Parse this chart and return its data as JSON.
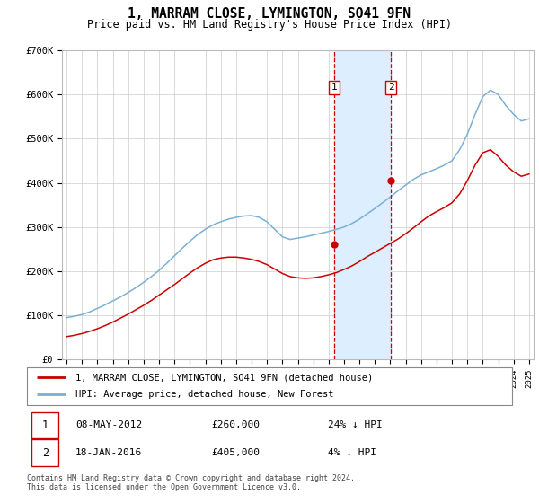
{
  "title": "1, MARRAM CLOSE, LYMINGTON, SO41 9FN",
  "subtitle": "Price paid vs. HM Land Registry's House Price Index (HPI)",
  "ylim": [
    0,
    700000
  ],
  "yticks": [
    0,
    100000,
    200000,
    300000,
    400000,
    500000,
    600000,
    700000
  ],
  "ytick_labels": [
    "£0",
    "£100K",
    "£200K",
    "£300K",
    "£400K",
    "£500K",
    "£600K",
    "£700K"
  ],
  "transaction1_date": 2012.36,
  "transaction1_price": 260000,
  "transaction1_label": "1",
  "transaction1_info": "08-MAY-2012",
  "transaction1_price_str": "£260,000",
  "transaction1_hpi_str": "24% ↓ HPI",
  "transaction2_date": 2016.05,
  "transaction2_price": 405000,
  "transaction2_label": "2",
  "transaction2_info": "18-JAN-2016",
  "transaction2_price_str": "£405,000",
  "transaction2_hpi_str": "4% ↓ HPI",
  "line1_color": "#cc0000",
  "line2_color": "#7ab0d4",
  "shade_color": "#ddeeff",
  "vline_color": "#cc0000",
  "legend1_label": "1, MARRAM CLOSE, LYMINGTON, SO41 9FN (detached house)",
  "legend2_label": "HPI: Average price, detached house, New Forest",
  "footer": "Contains HM Land Registry data © Crown copyright and database right 2024.\nThis data is licensed under the Open Government Licence v3.0.",
  "hpi_x": [
    1995.0,
    1995.5,
    1996.0,
    1996.5,
    1997.0,
    1997.5,
    1998.0,
    1998.5,
    1999.0,
    1999.5,
    2000.0,
    2000.5,
    2001.0,
    2001.5,
    2002.0,
    2002.5,
    2003.0,
    2003.5,
    2004.0,
    2004.5,
    2005.0,
    2005.5,
    2006.0,
    2006.5,
    2007.0,
    2007.5,
    2008.0,
    2008.5,
    2009.0,
    2009.5,
    2010.0,
    2010.5,
    2011.0,
    2011.5,
    2012.0,
    2012.5,
    2013.0,
    2013.5,
    2014.0,
    2014.5,
    2015.0,
    2015.5,
    2016.0,
    2016.5,
    2017.0,
    2017.5,
    2018.0,
    2018.5,
    2019.0,
    2019.5,
    2020.0,
    2020.5,
    2021.0,
    2021.5,
    2022.0,
    2022.5,
    2023.0,
    2023.5,
    2024.0,
    2024.5,
    2025.0
  ],
  "hpi_y": [
    95000,
    98000,
    102000,
    108000,
    116000,
    124000,
    133000,
    142000,
    152000,
    163000,
    175000,
    188000,
    202000,
    218000,
    235000,
    252000,
    268000,
    283000,
    295000,
    305000,
    312000,
    318000,
    322000,
    325000,
    326000,
    322000,
    312000,
    295000,
    278000,
    272000,
    275000,
    278000,
    282000,
    286000,
    290000,
    295000,
    300000,
    308000,
    318000,
    330000,
    342000,
    355000,
    368000,
    382000,
    395000,
    408000,
    418000,
    425000,
    432000,
    440000,
    450000,
    475000,
    510000,
    555000,
    595000,
    610000,
    600000,
    575000,
    555000,
    540000,
    545000
  ],
  "price_x": [
    1995.0,
    1995.5,
    1996.0,
    1996.5,
    1997.0,
    1997.5,
    1998.0,
    1998.5,
    1999.0,
    1999.5,
    2000.0,
    2000.5,
    2001.0,
    2001.5,
    2002.0,
    2002.5,
    2003.0,
    2003.5,
    2004.0,
    2004.5,
    2005.0,
    2005.5,
    2006.0,
    2006.5,
    2007.0,
    2007.5,
    2008.0,
    2008.5,
    2009.0,
    2009.5,
    2010.0,
    2010.5,
    2011.0,
    2011.5,
    2012.0,
    2012.5,
    2013.0,
    2013.5,
    2014.0,
    2014.5,
    2015.0,
    2015.5,
    2016.0,
    2016.5,
    2017.0,
    2017.5,
    2018.0,
    2018.5,
    2019.0,
    2019.5,
    2020.0,
    2020.5,
    2021.0,
    2021.5,
    2022.0,
    2022.5,
    2023.0,
    2023.5,
    2024.0,
    2024.5,
    2025.0
  ],
  "price_y": [
    52000,
    55000,
    59000,
    64000,
    70000,
    77000,
    85000,
    94000,
    103000,
    113000,
    123000,
    134000,
    146000,
    158000,
    170000,
    183000,
    196000,
    208000,
    218000,
    226000,
    230000,
    232000,
    232000,
    230000,
    227000,
    222000,
    215000,
    205000,
    195000,
    188000,
    185000,
    184000,
    185000,
    188000,
    192000,
    197000,
    204000,
    212000,
    222000,
    233000,
    243000,
    253000,
    263000,
    273000,
    285000,
    298000,
    312000,
    325000,
    335000,
    344000,
    355000,
    375000,
    405000,
    440000,
    468000,
    475000,
    460000,
    440000,
    425000,
    415000,
    420000
  ]
}
